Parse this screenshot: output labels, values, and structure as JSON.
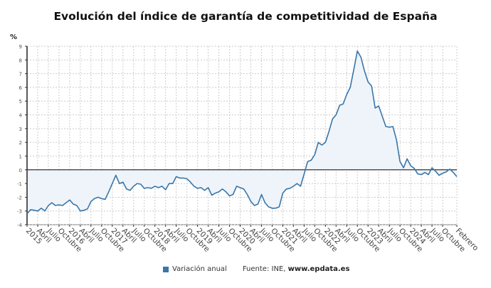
{
  "chart_data": {
    "type": "area",
    "title": "Evolución del índice de garantía de competitividad de España",
    "ylabel": "%",
    "ylim": [
      -4,
      9
    ],
    "yticks": [
      -4,
      -3,
      -2,
      -1,
      0,
      1,
      2,
      3,
      4,
      5,
      6,
      7,
      8,
      9
    ],
    "grid": true,
    "x_start": "2015-01",
    "x_end": "2025-02",
    "xtick_labels": [
      "2015",
      "Abril",
      "Julio",
      "Octubre",
      "2016",
      "Abril",
      "Julio",
      "Octubre",
      "2017",
      "Abril",
      "Julio",
      "Octubre",
      "2018",
      "Abril",
      "Julio",
      "Octubre",
      "2019",
      "Abril",
      "Julio",
      "Octubre",
      "2020",
      "Abril",
      "Julio",
      "Octubre",
      "2021",
      "Abril",
      "Julio",
      "Octubre",
      "2022",
      "Abril",
      "Julio",
      "Octubre",
      "2023",
      "Abril",
      "Julio",
      "Octubre",
      "2024",
      "Abril",
      "Julio",
      "Octubre",
      "Febrero"
    ],
    "series": [
      {
        "name": "Variación anual",
        "color": "#3a76a8",
        "fill": "#eef4fa",
        "values": [
          -3.2,
          -2.9,
          -2.95,
          -3.0,
          -2.8,
          -3.0,
          -2.6,
          -2.4,
          -2.6,
          -2.55,
          -2.6,
          -2.4,
          -2.2,
          -2.5,
          -2.6,
          -3.0,
          -2.95,
          -2.85,
          -2.3,
          -2.1,
          -2.0,
          -2.1,
          -2.15,
          -1.6,
          -1.0,
          -0.4,
          -1.0,
          -0.9,
          -1.4,
          -1.5,
          -1.2,
          -1.0,
          -1.05,
          -1.35,
          -1.3,
          -1.35,
          -1.2,
          -1.3,
          -1.2,
          -1.45,
          -1.0,
          -1.0,
          -0.5,
          -0.6,
          -0.6,
          -0.65,
          -0.9,
          -1.2,
          -1.35,
          -1.3,
          -1.5,
          -1.3,
          -1.85,
          -1.7,
          -1.6,
          -1.4,
          -1.6,
          -1.9,
          -1.8,
          -1.2,
          -1.3,
          -1.4,
          -1.8,
          -2.3,
          -2.6,
          -2.5,
          -1.8,
          -2.4,
          -2.7,
          -2.8,
          -2.8,
          -2.7,
          -1.7,
          -1.4,
          -1.35,
          -1.2,
          -1.0,
          -1.2,
          -0.3,
          0.6,
          0.7,
          1.1,
          2.0,
          1.8,
          2.0,
          2.8,
          3.7,
          4.0,
          4.7,
          4.8,
          5.5,
          6.0,
          7.3,
          8.65,
          8.2,
          7.2,
          6.4,
          6.1,
          4.5,
          4.65,
          3.9,
          3.15,
          3.1,
          3.15,
          2.2,
          0.6,
          0.15,
          0.8,
          0.3,
          0.1,
          -0.3,
          -0.35,
          -0.2,
          -0.35,
          0.15,
          -0.1,
          -0.4,
          -0.25,
          -0.15,
          0.05,
          -0.2,
          -0.5
        ]
      }
    ],
    "legend_placement": "bottom"
  },
  "source_label": "Fuente: INE,",
  "source_site": "www.epdata.es"
}
